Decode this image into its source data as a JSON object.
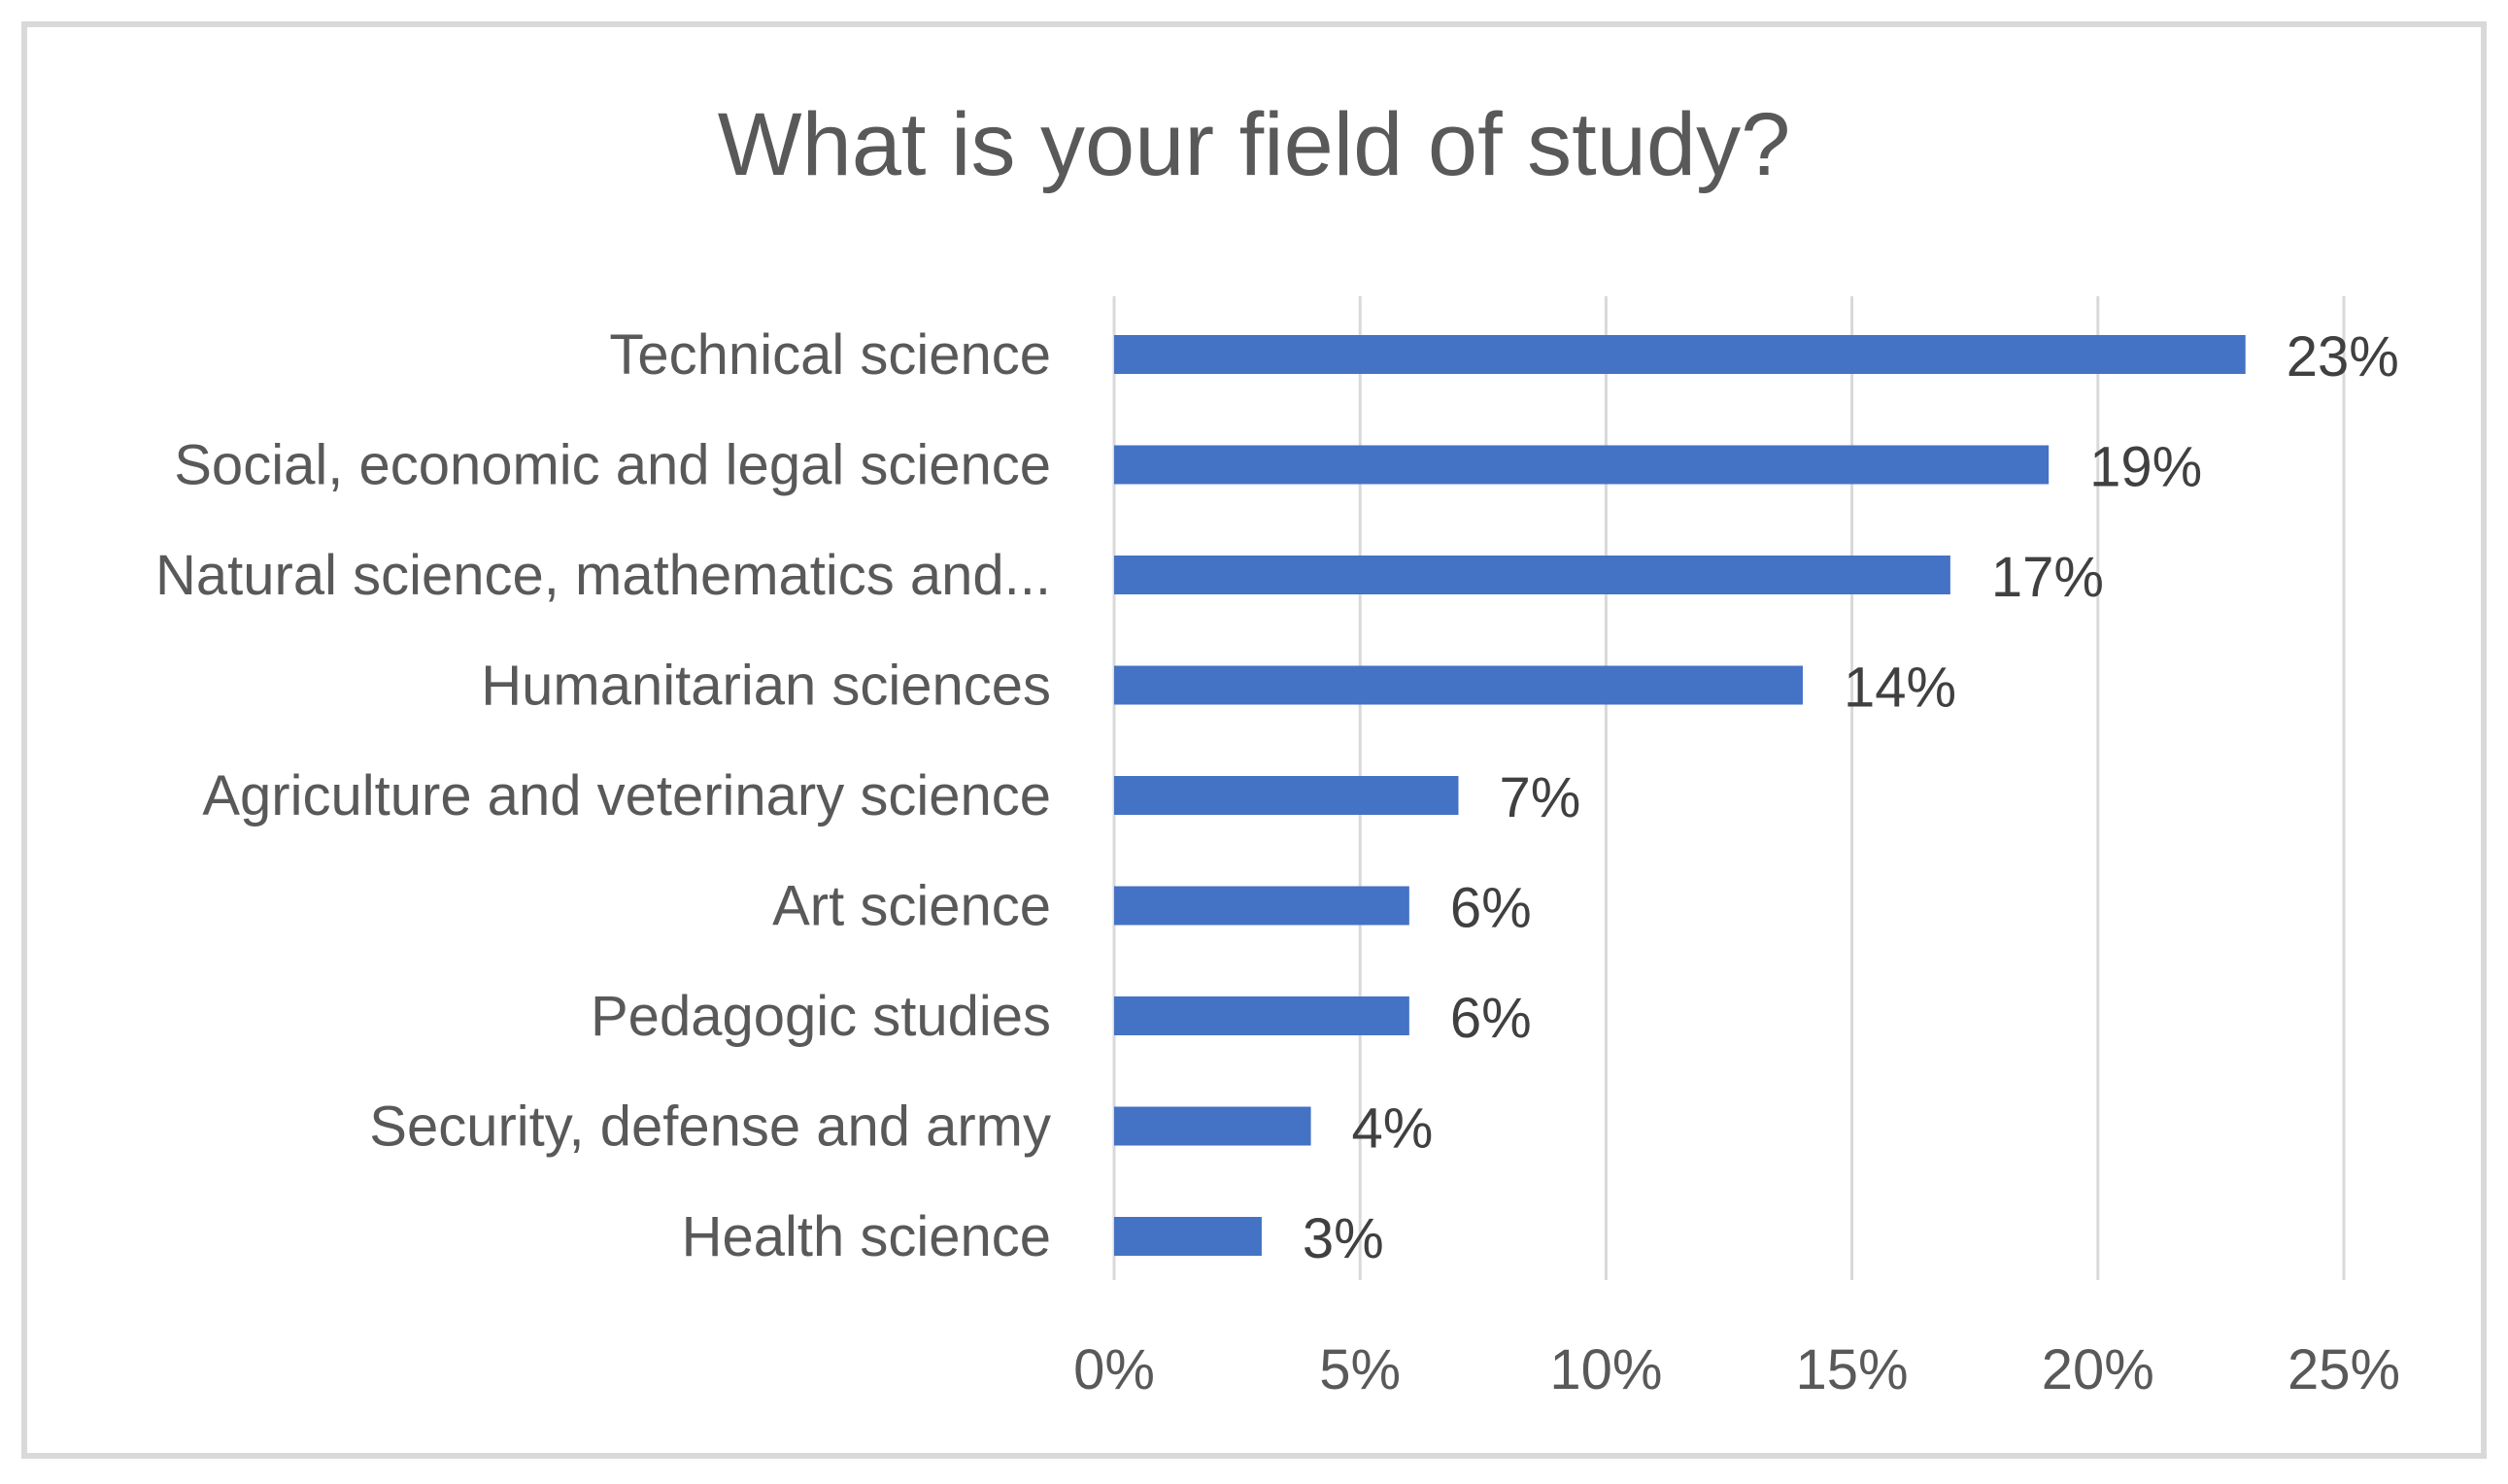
{
  "chart_data": {
    "type": "bar",
    "orientation": "horizontal",
    "title": "What is your field of study?",
    "categories": [
      "Technical science",
      "Social, economic and legal science",
      "Natural science, mathematics and...",
      "Humanitarian sciences",
      "Agriculture and veterinary science",
      "Art science",
      "Pedagogic studies",
      "Security, defense and army",
      "Health science"
    ],
    "values": [
      23,
      19,
      17,
      14,
      7,
      6,
      6,
      4,
      3
    ],
    "data_labels": [
      "23%",
      "19%",
      "17%",
      "14%",
      "7%",
      "6%",
      "6%",
      "4%",
      "3%"
    ],
    "x_ticks": [
      0,
      5,
      10,
      15,
      20,
      25
    ],
    "x_tick_labels": [
      "0%",
      "5%",
      "10%",
      "15%",
      "20%",
      "25%"
    ],
    "xlim": [
      0,
      25
    ],
    "xlabel": "",
    "ylabel": "",
    "grid": "vertical",
    "legend": "none",
    "bar_color": "#4472c4"
  }
}
